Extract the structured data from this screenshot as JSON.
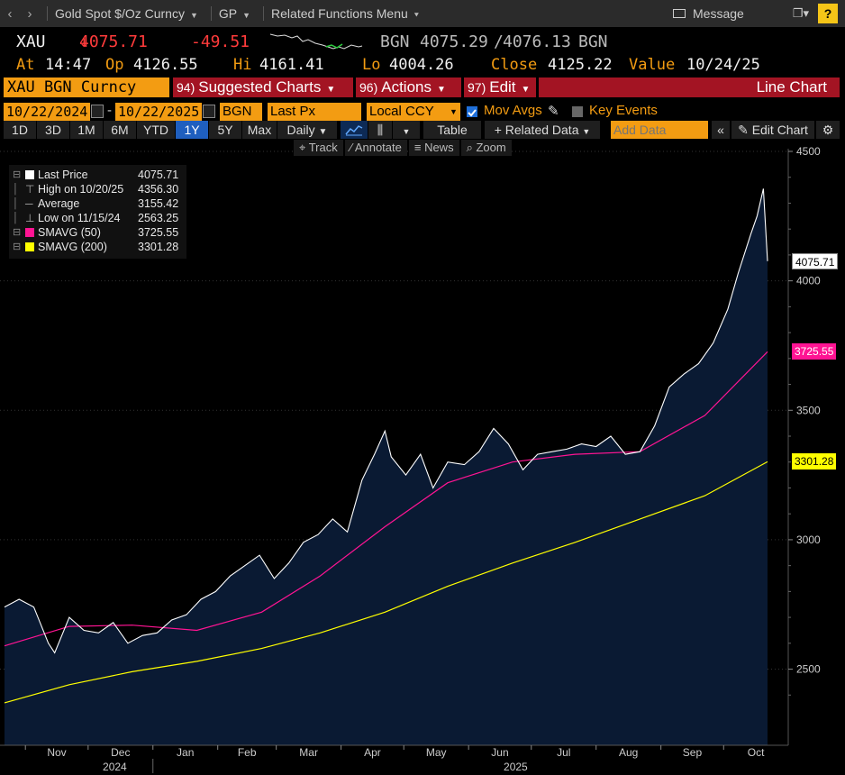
{
  "nav": {
    "title": "Gold Spot $/Oz Curncy",
    "gp": "GP",
    "related": "Related Functions Menu",
    "message": "Message",
    "help": "?"
  },
  "quote": {
    "ticker": "XAU",
    "last": "4075.71",
    "change": "-49.51",
    "bid_src": "BGN",
    "bid": "4075.29",
    "ask": "4076.13",
    "ask_src": "BGN",
    "at_label": "At",
    "time": "14:47",
    "op_label": "Op",
    "open": "4126.55",
    "hi_label": "Hi",
    "high": "4161.41",
    "lo_label": "Lo",
    "low": "4004.26",
    "close_label": "Close",
    "close": "4125.22",
    "value_label": "Value",
    "value_date": "10/24/25"
  },
  "command": {
    "security": "XAU BGN Curncy",
    "suggested_num": "94)",
    "suggested": "Suggested Charts",
    "actions_num": "96)",
    "actions": "Actions",
    "edit_num": "97)",
    "edit": "Edit",
    "chart_type": "Line Chart"
  },
  "params": {
    "start": "10/22/2024",
    "dash": "-",
    "end": "10/22/2025",
    "source": "BGN",
    "field": "Last Px",
    "ccy": "Local CCY",
    "mov_avgs": "Mov Avgs",
    "key_events": "Key Events"
  },
  "periods": {
    "items": [
      "1D",
      "3D",
      "1M",
      "6M",
      "YTD",
      "1Y",
      "5Y",
      "Max"
    ],
    "selected": "1Y",
    "freq": "Daily",
    "table": "Table",
    "related": "Related Data",
    "add_placeholder": "Add Data",
    "edit_chart": "Edit Chart"
  },
  "tools": {
    "track": "Track",
    "annotate": "Annotate",
    "news": "News",
    "zoom": "Zoom"
  },
  "legend": [
    {
      "name": "Last Price",
      "value": "4075.71",
      "color": "#ffffff",
      "sym": "square"
    },
    {
      "name": "High on 10/20/25",
      "value": "4356.30",
      "color": "#aaaaaa",
      "sym": "high"
    },
    {
      "name": "Average",
      "value": "3155.42",
      "color": "#aaaaaa",
      "sym": "avg"
    },
    {
      "name": "Low on 11/15/24",
      "value": "2563.25",
      "color": "#aaaaaa",
      "sym": "low"
    },
    {
      "name": "SMAVG (50)",
      "value": "3725.55",
      "color": "#ff1493",
      "sym": "square"
    },
    {
      "name": "SMAVG (200)",
      "value": "3301.28",
      "color": "#ffff00",
      "sym": "square"
    }
  ],
  "tags": {
    "last": "4075.71",
    "sma50": "3725.55",
    "sma200": "3301.28"
  },
  "colors": {
    "accent": "#f39c12",
    "brand_red": "#a31423",
    "selected_blue": "#1f5fbf",
    "price_line": "#ffffff",
    "area_fill": "#0a1a33",
    "sma50": "#ff1493",
    "sma200": "#ffff00"
  },
  "chart_data": {
    "type": "line",
    "ylim": [
      2300,
      4500
    ],
    "yticks": [
      2500,
      3000,
      3500,
      4000,
      4500
    ],
    "xaxis_months": [
      "Nov",
      "Dec",
      "Jan",
      "Feb",
      "Mar",
      "Apr",
      "May",
      "Jun",
      "Jul",
      "Aug",
      "Sep",
      "Oct"
    ],
    "xaxis_years": [
      "2024",
      "2025"
    ],
    "series": [
      {
        "name": "Last Price",
        "x": [
          "2024-10-22",
          "2024-10-29",
          "2024-11-05",
          "2024-11-12",
          "2024-11-15",
          "2024-11-22",
          "2024-11-29",
          "2024-12-06",
          "2024-12-13",
          "2024-12-20",
          "2024-12-27",
          "2025-01-03",
          "2025-01-10",
          "2025-01-17",
          "2025-01-24",
          "2025-01-31",
          "2025-02-07",
          "2025-02-14",
          "2025-02-21",
          "2025-02-28",
          "2025-03-07",
          "2025-03-14",
          "2025-03-21",
          "2025-03-28",
          "2025-04-04",
          "2025-04-11",
          "2025-04-17",
          "2025-04-22",
          "2025-04-25",
          "2025-05-02",
          "2025-05-09",
          "2025-05-15",
          "2025-05-22",
          "2025-05-30",
          "2025-06-06",
          "2025-06-13",
          "2025-06-20",
          "2025-06-27",
          "2025-07-04",
          "2025-07-11",
          "2025-07-18",
          "2025-07-25",
          "2025-08-01",
          "2025-08-08",
          "2025-08-15",
          "2025-08-22",
          "2025-08-29",
          "2025-09-05",
          "2025-09-12",
          "2025-09-19",
          "2025-09-26",
          "2025-10-03",
          "2025-10-08",
          "2025-10-14",
          "2025-10-17",
          "2025-10-20",
          "2025-10-22"
        ],
        "values": [
          2740,
          2770,
          2740,
          2600,
          2563,
          2700,
          2650,
          2640,
          2680,
          2600,
          2630,
          2640,
          2690,
          2710,
          2770,
          2800,
          2860,
          2900,
          2940,
          2850,
          2910,
          2990,
          3020,
          3080,
          3030,
          3230,
          3330,
          3420,
          3320,
          3250,
          3330,
          3200,
          3300,
          3290,
          3340,
          3430,
          3370,
          3270,
          3330,
          3340,
          3350,
          3370,
          3360,
          3400,
          3330,
          3340,
          3440,
          3590,
          3640,
          3680,
          3760,
          3890,
          4030,
          4180,
          4250,
          4356,
          4076
        ]
      },
      {
        "name": "SMAVG (50)",
        "x": [
          "2024-10-22",
          "2024-11-22",
          "2024-12-22",
          "2025-01-22",
          "2025-02-22",
          "2025-03-22",
          "2025-04-22",
          "2025-05-22",
          "2025-06-22",
          "2025-07-22",
          "2025-08-22",
          "2025-09-22",
          "2025-10-22"
        ],
        "values": [
          2590,
          2665,
          2670,
          2650,
          2720,
          2860,
          3050,
          3220,
          3300,
          3330,
          3340,
          3480,
          3726
        ]
      },
      {
        "name": "SMAVG (200)",
        "x": [
          "2024-10-22",
          "2024-11-22",
          "2024-12-22",
          "2025-01-22",
          "2025-02-22",
          "2025-03-22",
          "2025-04-22",
          "2025-05-22",
          "2025-06-22",
          "2025-07-22",
          "2025-08-22",
          "2025-09-22",
          "2025-10-22"
        ],
        "values": [
          2370,
          2440,
          2490,
          2530,
          2580,
          2640,
          2720,
          2820,
          2910,
          2990,
          3080,
          3170,
          3301
        ]
      }
    ]
  }
}
